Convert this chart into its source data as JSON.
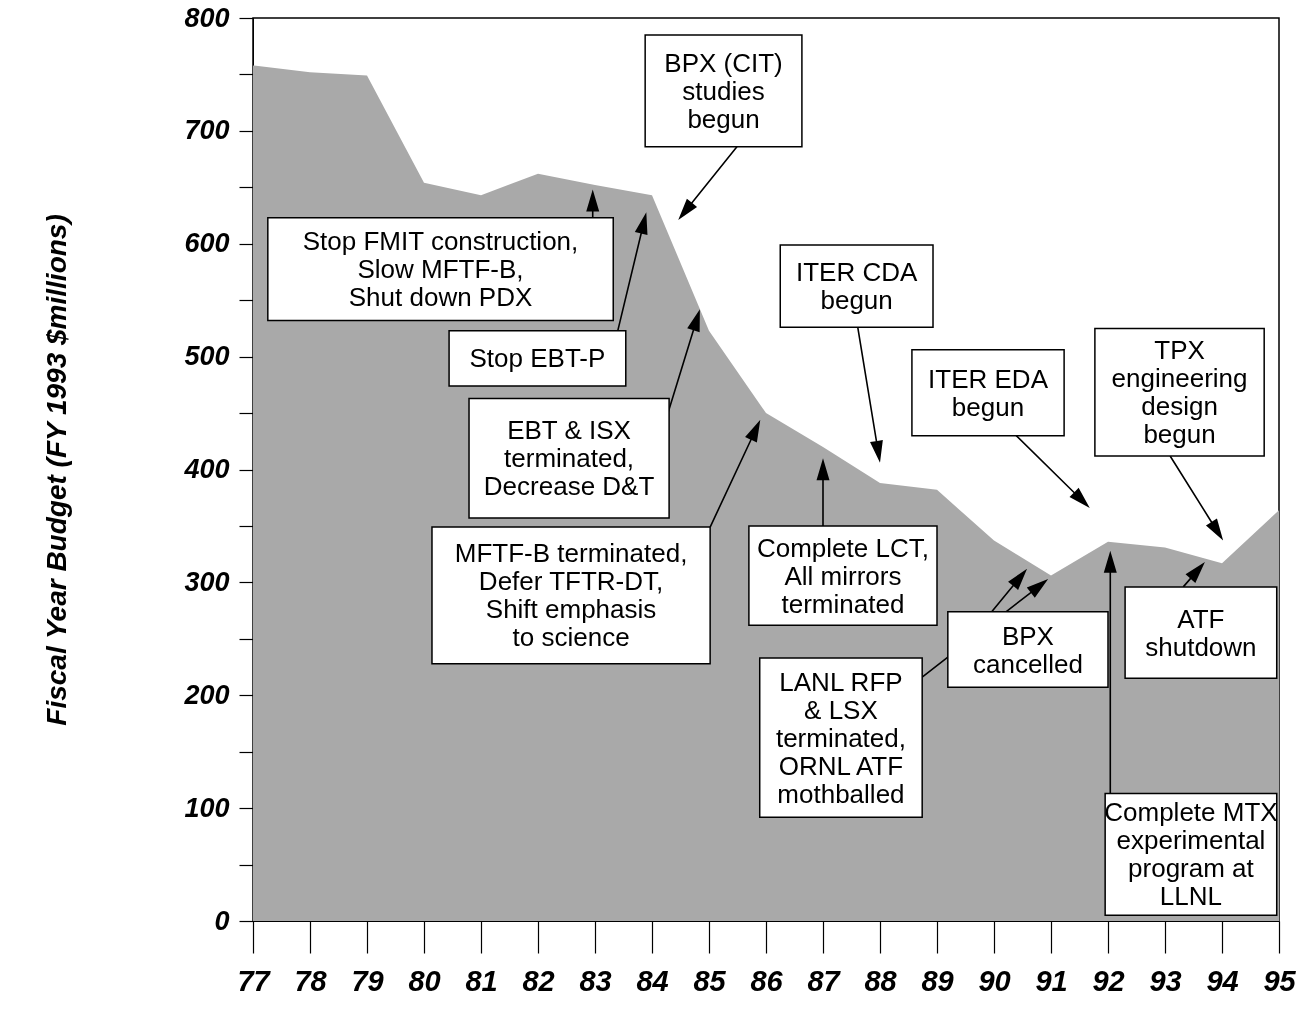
{
  "chart_data": {
    "type": "area",
    "ylabel": "Fiscal Year Budget (FY 1993 $millions)",
    "color": "#a9a9a9",
    "x": [
      77,
      78,
      79,
      80,
      81,
      82,
      83,
      84,
      85,
      86,
      87,
      88,
      89,
      90,
      91,
      92,
      93,
      94,
      95
    ],
    "values": [
      758,
      752,
      749,
      654,
      643,
      662,
      652,
      643,
      523,
      450,
      420,
      388,
      382,
      337,
      306,
      336,
      331,
      317,
      364
    ],
    "xlim": [
      77,
      95
    ],
    "xticks": [
      77,
      78,
      79,
      80,
      81,
      82,
      83,
      84,
      85,
      86,
      87,
      88,
      89,
      90,
      91,
      92,
      93,
      94,
      95
    ],
    "ylim": [
      0,
      800
    ],
    "yticks": [
      0,
      {
        "value": 50,
        "label": null
      },
      100,
      {
        "value": 150,
        "label": null
      },
      200,
      {
        "value": 250,
        "label": null
      },
      300,
      {
        "value": 350,
        "label": null
      },
      400,
      {
        "value": 450,
        "label": null
      },
      500,
      {
        "value": 550,
        "label": null
      },
      600,
      {
        "value": 650,
        "label": null
      },
      700,
      {
        "value": 750,
        "label": null
      },
      800
    ],
    "annotations": [
      "Stop FMIT construction,\nSlow MFTF-B,\nShut down PDX",
      "Stop EBT-P",
      "EBT & ISX\nterminated,\nDecrease D&T",
      "MFTF-B terminated,\nDefer TFTR-DT,\nShift emphasis\nto science",
      "BPX (CIT)\nstudies\nbegun",
      "ITER CDA\nbegun",
      "Complete LCT,\nAll mirrors\nterminated",
      "LANL RFP\n& LSX\nterminated,\nORNL ATF\nmothballed",
      "ITER EDA\nbegun",
      "TPX\nengineering\ndesign\nbegun",
      "BPX\ncancelled",
      "Complete MTX\nexperimental\nprogram at\nLLNL",
      "ATF\nshutdown"
    ]
  }
}
